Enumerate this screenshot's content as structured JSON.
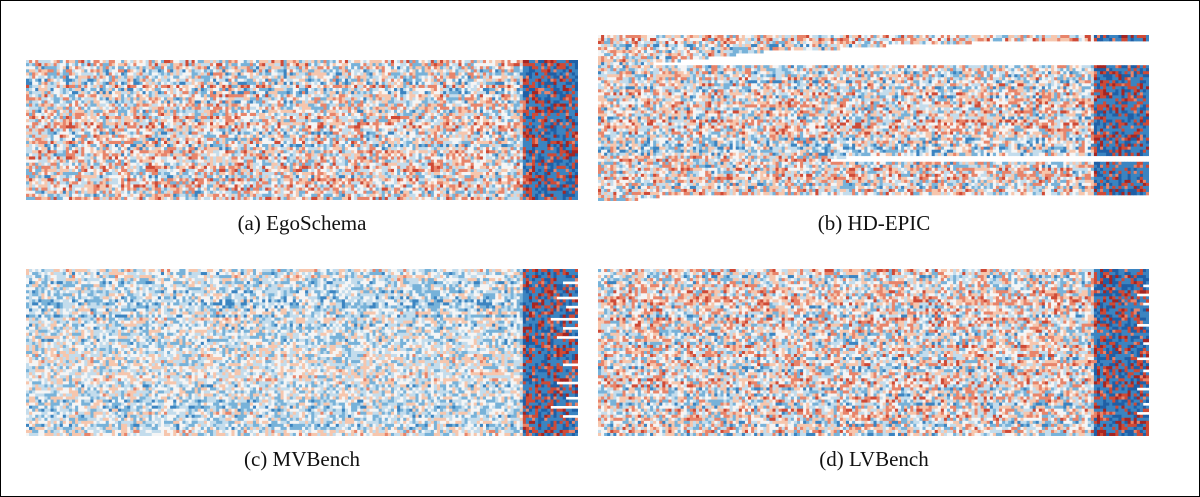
{
  "colors": {
    "low": "#2b6fb0",
    "mid": "#f7f7f7",
    "high": "#c8382a",
    "palette": [
      "#1f5fa6",
      "#3b84c1",
      "#77b2d9",
      "#c3dcec",
      "#f5f5f5",
      "#f6c6ad",
      "#e8846a",
      "#cf4a36",
      "#a52522"
    ]
  },
  "chart_data": [
    {
      "type": "heatmap",
      "caption": "(a) EgoSchema",
      "rows": 45,
      "cols": 180,
      "tail_cols": 18,
      "gaps": [],
      "short_rows": []
    },
    {
      "type": "heatmap",
      "caption": "(b) HD-EPIC",
      "rows": 55,
      "cols": 180,
      "tail_cols": 18,
      "gaps": [
        {
          "row": 2,
          "start": 0.68
        },
        {
          "row": 3,
          "start": 0.52
        },
        {
          "row": 4,
          "start": 0.44
        },
        {
          "row": 5,
          "start": 0.3
        },
        {
          "row": 6,
          "start": 0.25
        },
        {
          "row": 7,
          "start": 0.2
        },
        {
          "row": 8,
          "start": 0.15
        },
        {
          "row": 9,
          "start": 0.1
        },
        {
          "row": 40,
          "start": 0.45
        },
        {
          "row": 41,
          "start": 0.42
        },
        {
          "row": 53,
          "start": 0.11
        },
        {
          "row": 54,
          "start": 0.07
        }
      ],
      "short_rows": []
    },
    {
      "type": "heatmap",
      "caption": "(c) MVBench",
      "rows": 55,
      "cols": 180,
      "tail_cols": 18,
      "gaps": [],
      "short_rows": [
        {
          "row": 4,
          "end": 0.97
        },
        {
          "row": 9,
          "end": 0.96
        },
        {
          "row": 12,
          "end": 0.98
        },
        {
          "row": 16,
          "end": 0.95
        },
        {
          "row": 19,
          "end": 0.97
        },
        {
          "row": 22,
          "end": 0.96
        },
        {
          "row": 31,
          "end": 0.97
        },
        {
          "row": 37,
          "end": 0.96
        },
        {
          "row": 42,
          "end": 0.98
        },
        {
          "row": 45,
          "end": 0.95
        },
        {
          "row": 48,
          "end": 0.97
        }
      ]
    },
    {
      "type": "heatmap",
      "caption": "(d) LVBench",
      "rows": 55,
      "cols": 180,
      "tail_cols": 18,
      "gaps": [],
      "short_rows": [
        {
          "row": 5,
          "end": 0.99
        },
        {
          "row": 8,
          "end": 0.98
        },
        {
          "row": 11,
          "end": 0.99
        },
        {
          "row": 18,
          "end": 0.98
        },
        {
          "row": 24,
          "end": 0.99
        },
        {
          "row": 29,
          "end": 0.98
        },
        {
          "row": 33,
          "end": 0.99
        },
        {
          "row": 39,
          "end": 0.98
        },
        {
          "row": 44,
          "end": 0.99
        },
        {
          "row": 47,
          "end": 0.98
        }
      ]
    }
  ]
}
